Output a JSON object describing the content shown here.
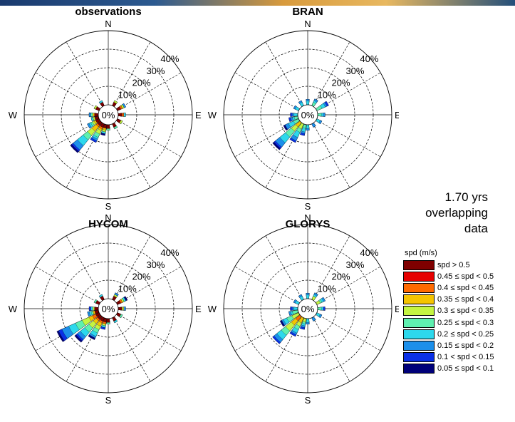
{
  "chart_data": [
    {
      "type": "polar-bar",
      "title": "observations",
      "direction_labels": [
        "N",
        "E",
        "S",
        "W"
      ],
      "radial_tick_labels": [
        "10%",
        "20%",
        "30%",
        "40%"
      ],
      "center_label": "0%",
      "rlim": [
        0,
        40
      ],
      "unit": "%",
      "sectors_deg": [
        0,
        30,
        60,
        90,
        120,
        150,
        180,
        195,
        210,
        225,
        240,
        255,
        270,
        300,
        330
      ],
      "speed_bins": [
        "spd > 0.5",
        "0.45 ≤ spd < 0.5",
        "0.4 ≤ spd < 0.45",
        "0.35 ≤ spd < 0.4",
        "0.3 ≤ spd < 0.35",
        "0.25 ≤ spd < 0.3",
        "0.2 ≤ spd < 0.25",
        "0.15 ≤ spd < 0.2",
        "0.1 < spd < 0.15",
        "0.05 ≤ spd < 0.1"
      ],
      "cumulative_percent": [
        [
          0,
          2,
          2,
          2,
          2,
          2,
          2,
          2,
          2,
          2,
          2,
          2,
          2,
          2,
          2
        ],
        [
          0,
          2,
          2,
          2,
          2,
          2,
          2,
          2,
          2,
          2,
          2,
          2,
          2,
          2,
          2
        ],
        [
          0,
          2,
          3,
          3,
          2,
          2,
          2,
          2,
          3,
          3,
          2,
          2,
          2,
          2,
          2
        ],
        [
          0,
          2,
          3,
          3,
          2,
          2,
          2,
          3,
          4,
          6,
          3,
          2,
          3,
          2,
          2
        ],
        [
          0,
          3,
          4,
          3,
          3,
          2,
          2,
          4,
          6,
          9,
          4,
          3,
          3,
          3,
          2
        ],
        [
          0,
          3,
          4,
          3,
          3,
          3,
          3,
          4,
          8,
          12,
          5,
          3,
          4,
          3,
          2
        ],
        [
          0,
          3,
          4,
          4,
          3,
          3,
          3,
          5,
          9,
          16,
          6,
          4,
          4,
          3,
          3
        ],
        [
          0,
          3,
          5,
          4,
          3,
          3,
          3,
          5,
          10,
          19,
          7,
          4,
          5,
          3,
          3
        ],
        [
          0,
          3,
          5,
          4,
          3,
          3,
          3,
          5,
          11,
          20,
          7,
          4,
          5,
          3,
          3
        ],
        [
          0,
          3,
          5,
          4,
          3,
          3,
          3,
          6,
          11,
          21,
          7,
          4,
          5,
          3,
          3
        ]
      ]
    },
    {
      "type": "polar-bar",
      "title": "BRAN",
      "direction_labels": [
        "N",
        "E",
        "S",
        "W"
      ],
      "radial_tick_labels": [
        "10%",
        "20%",
        "30%",
        "40%"
      ],
      "center_label": "0%",
      "rlim": [
        0,
        40
      ],
      "unit": "%",
      "sectors_deg": [
        0,
        30,
        60,
        90,
        120,
        150,
        180,
        195,
        210,
        225,
        240,
        255,
        270,
        300,
        330
      ],
      "speed_bins": [
        "spd > 0.5",
        "0.45 ≤ spd < 0.5",
        "0.4 ≤ spd < 0.45",
        "0.35 ≤ spd < 0.4",
        "0.3 ≤ spd < 0.35",
        "0.25 ≤ spd < 0.3",
        "0.2 ≤ spd < 0.25",
        "0.15 ≤ spd < 0.2",
        "0.1 < spd < 0.15",
        "0.05 ≤ spd < 0.1"
      ],
      "cumulative_percent": [
        [
          0,
          0,
          0,
          0,
          0,
          0,
          0,
          0,
          0,
          0,
          0,
          0,
          0,
          0,
          0
        ],
        [
          0,
          0,
          0,
          0,
          0,
          0,
          0,
          0,
          0,
          0,
          0,
          0,
          0,
          0,
          0
        ],
        [
          0,
          0,
          0,
          0,
          0,
          0,
          0,
          0,
          0,
          0,
          0,
          0,
          0,
          0,
          0
        ],
        [
          0,
          0,
          0,
          0,
          0,
          0,
          0,
          0,
          0,
          3,
          0,
          0,
          0,
          0,
          0
        ],
        [
          0,
          0,
          0,
          0,
          0,
          0,
          0,
          0,
          3,
          6,
          0,
          0,
          0,
          0,
          0
        ],
        [
          0,
          2,
          3,
          2,
          0,
          0,
          0,
          2,
          5,
          10,
          3,
          2,
          0,
          0,
          0
        ],
        [
          2,
          3,
          5,
          3,
          2,
          0,
          2,
          4,
          8,
          14,
          6,
          3,
          2,
          2,
          2
        ],
        [
          3,
          4,
          6,
          4,
          3,
          2,
          3,
          5,
          10,
          17,
          8,
          4,
          3,
          3,
          3
        ],
        [
          3,
          4,
          7,
          4,
          3,
          2,
          3,
          6,
          11,
          18,
          8,
          5,
          4,
          3,
          3
        ],
        [
          3,
          4,
          7,
          4,
          3,
          2,
          3,
          6,
          11,
          19,
          9,
          5,
          4,
          3,
          3
        ]
      ]
    },
    {
      "type": "polar-bar",
      "title": "HYCOM",
      "direction_labels": [
        "N",
        "E",
        "S",
        "W"
      ],
      "radial_tick_labels": [
        "10%",
        "20%",
        "30%",
        "40%"
      ],
      "center_label": "0%",
      "rlim": [
        0,
        40
      ],
      "unit": "%",
      "sectors_deg": [
        0,
        30,
        60,
        90,
        120,
        150,
        180,
        195,
        210,
        225,
        240,
        255,
        270,
        300,
        330
      ],
      "speed_bins": [
        "spd > 0.5",
        "0.45 ≤ spd < 0.5",
        "0.4 ≤ spd < 0.45",
        "0.35 ≤ spd < 0.4",
        "0.3 ≤ spd < 0.35",
        "0.25 ≤ spd < 0.3",
        "0.2 ≤ spd < 0.25",
        "0.15 ≤ spd < 0.2",
        "0.1 < spd < 0.15",
        "0.05 ≤ spd < 0.1"
      ],
      "cumulative_percent": [
        [
          0,
          2,
          2,
          2,
          2,
          2,
          2,
          2,
          2,
          2,
          2,
          2,
          2,
          2,
          2
        ],
        [
          0,
          2,
          2,
          2,
          2,
          2,
          2,
          2,
          2,
          2,
          2,
          2,
          2,
          2,
          2
        ],
        [
          0,
          2,
          3,
          2,
          2,
          2,
          2,
          3,
          3,
          3,
          4,
          2,
          2,
          2,
          2
        ],
        [
          0,
          2,
          3,
          2,
          2,
          2,
          2,
          3,
          5,
          5,
          6,
          3,
          2,
          2,
          2
        ],
        [
          0,
          3,
          4,
          3,
          2,
          2,
          2,
          4,
          7,
          8,
          10,
          3,
          3,
          2,
          2
        ],
        [
          0,
          3,
          4,
          3,
          3,
          2,
          3,
          4,
          9,
          11,
          14,
          4,
          3,
          3,
          2
        ],
        [
          0,
          3,
          5,
          3,
          3,
          3,
          3,
          5,
          11,
          14,
          18,
          5,
          4,
          3,
          3
        ],
        [
          0,
          4,
          5,
          4,
          3,
          3,
          3,
          5,
          12,
          16,
          22,
          6,
          4,
          3,
          3
        ],
        [
          0,
          4,
          5,
          4,
          3,
          3,
          3,
          6,
          12,
          17,
          24,
          6,
          5,
          3,
          3
        ],
        [
          0,
          4,
          6,
          4,
          3,
          3,
          3,
          6,
          13,
          18,
          25,
          6,
          5,
          3,
          3
        ]
      ]
    },
    {
      "type": "polar-bar",
      "title": "GLORYS",
      "direction_labels": [
        "N",
        "E",
        "S",
        "W"
      ],
      "radial_tick_labels": [
        "10%",
        "20%",
        "30%",
        "40%"
      ],
      "center_label": "0%",
      "rlim": [
        0,
        40
      ],
      "unit": "%",
      "sectors_deg": [
        0,
        30,
        60,
        90,
        120,
        150,
        180,
        195,
        210,
        225,
        240,
        255,
        270,
        300,
        330
      ],
      "speed_bins": [
        "spd > 0.5",
        "0.45 ≤ spd < 0.5",
        "0.4 ≤ spd < 0.45",
        "0.35 ≤ spd < 0.4",
        "0.3 ≤ spd < 0.35",
        "0.25 ≤ spd < 0.3",
        "0.2 ≤ spd < 0.25",
        "0.15 ≤ spd < 0.2",
        "0.1 < spd < 0.15",
        "0.05 ≤ spd < 0.1"
      ],
      "cumulative_percent": [
        [
          0,
          0,
          0,
          0,
          0,
          0,
          0,
          0,
          0,
          0,
          0,
          0,
          0,
          0,
          0
        ],
        [
          0,
          0,
          0,
          0,
          0,
          0,
          0,
          0,
          0,
          0,
          0,
          0,
          0,
          0,
          0
        ],
        [
          0,
          0,
          0,
          0,
          0,
          0,
          0,
          0,
          0,
          3,
          0,
          0,
          0,
          0,
          0
        ],
        [
          0,
          0,
          0,
          0,
          0,
          0,
          0,
          0,
          3,
          6,
          0,
          0,
          0,
          0,
          0
        ],
        [
          0,
          2,
          2,
          0,
          0,
          0,
          0,
          2,
          5,
          10,
          4,
          0,
          0,
          0,
          0
        ],
        [
          0,
          2,
          3,
          2,
          0,
          0,
          0,
          3,
          7,
          13,
          7,
          3,
          0,
          0,
          0
        ],
        [
          2,
          3,
          4,
          3,
          2,
          0,
          2,
          4,
          9,
          16,
          9,
          4,
          2,
          2,
          2
        ],
        [
          3,
          4,
          5,
          3,
          3,
          2,
          3,
          5,
          10,
          18,
          10,
          5,
          3,
          3,
          3
        ],
        [
          3,
          4,
          5,
          4,
          3,
          2,
          3,
          6,
          11,
          19,
          10,
          5,
          4,
          3,
          3
        ],
        [
          3,
          4,
          5,
          4,
          3,
          2,
          3,
          6,
          11,
          19,
          11,
          5,
          4,
          3,
          3
        ]
      ]
    }
  ],
  "overlap_note": [
    "1.70 yrs",
    "overlapping",
    "data"
  ],
  "legend": {
    "title": "spd (m/s)",
    "items": [
      {
        "label": "spd > 0.5",
        "color": "#7f0000"
      },
      {
        "label": "0.45 ≤ spd < 0.5",
        "color": "#e60000"
      },
      {
        "label": "0.4 ≤ spd < 0.45",
        "color": "#ff6a00"
      },
      {
        "label": "0.35 ≤ spd < 0.4",
        "color": "#f5c400"
      },
      {
        "label": "0.3 ≤ spd < 0.35",
        "color": "#c5f542"
      },
      {
        "label": "0.25 ≤ spd < 0.3",
        "color": "#5ff0b0"
      },
      {
        "label": "0.2 ≤ spd < 0.25",
        "color": "#2dd8ec"
      },
      {
        "label": "0.15 ≤ spd < 0.2",
        "color": "#1c8fea"
      },
      {
        "label": "0.1 < spd < 0.15",
        "color": "#0a2fe6"
      },
      {
        "label": "0.05 ≤ spd < 0.1",
        "color": "#00007a"
      }
    ]
  }
}
